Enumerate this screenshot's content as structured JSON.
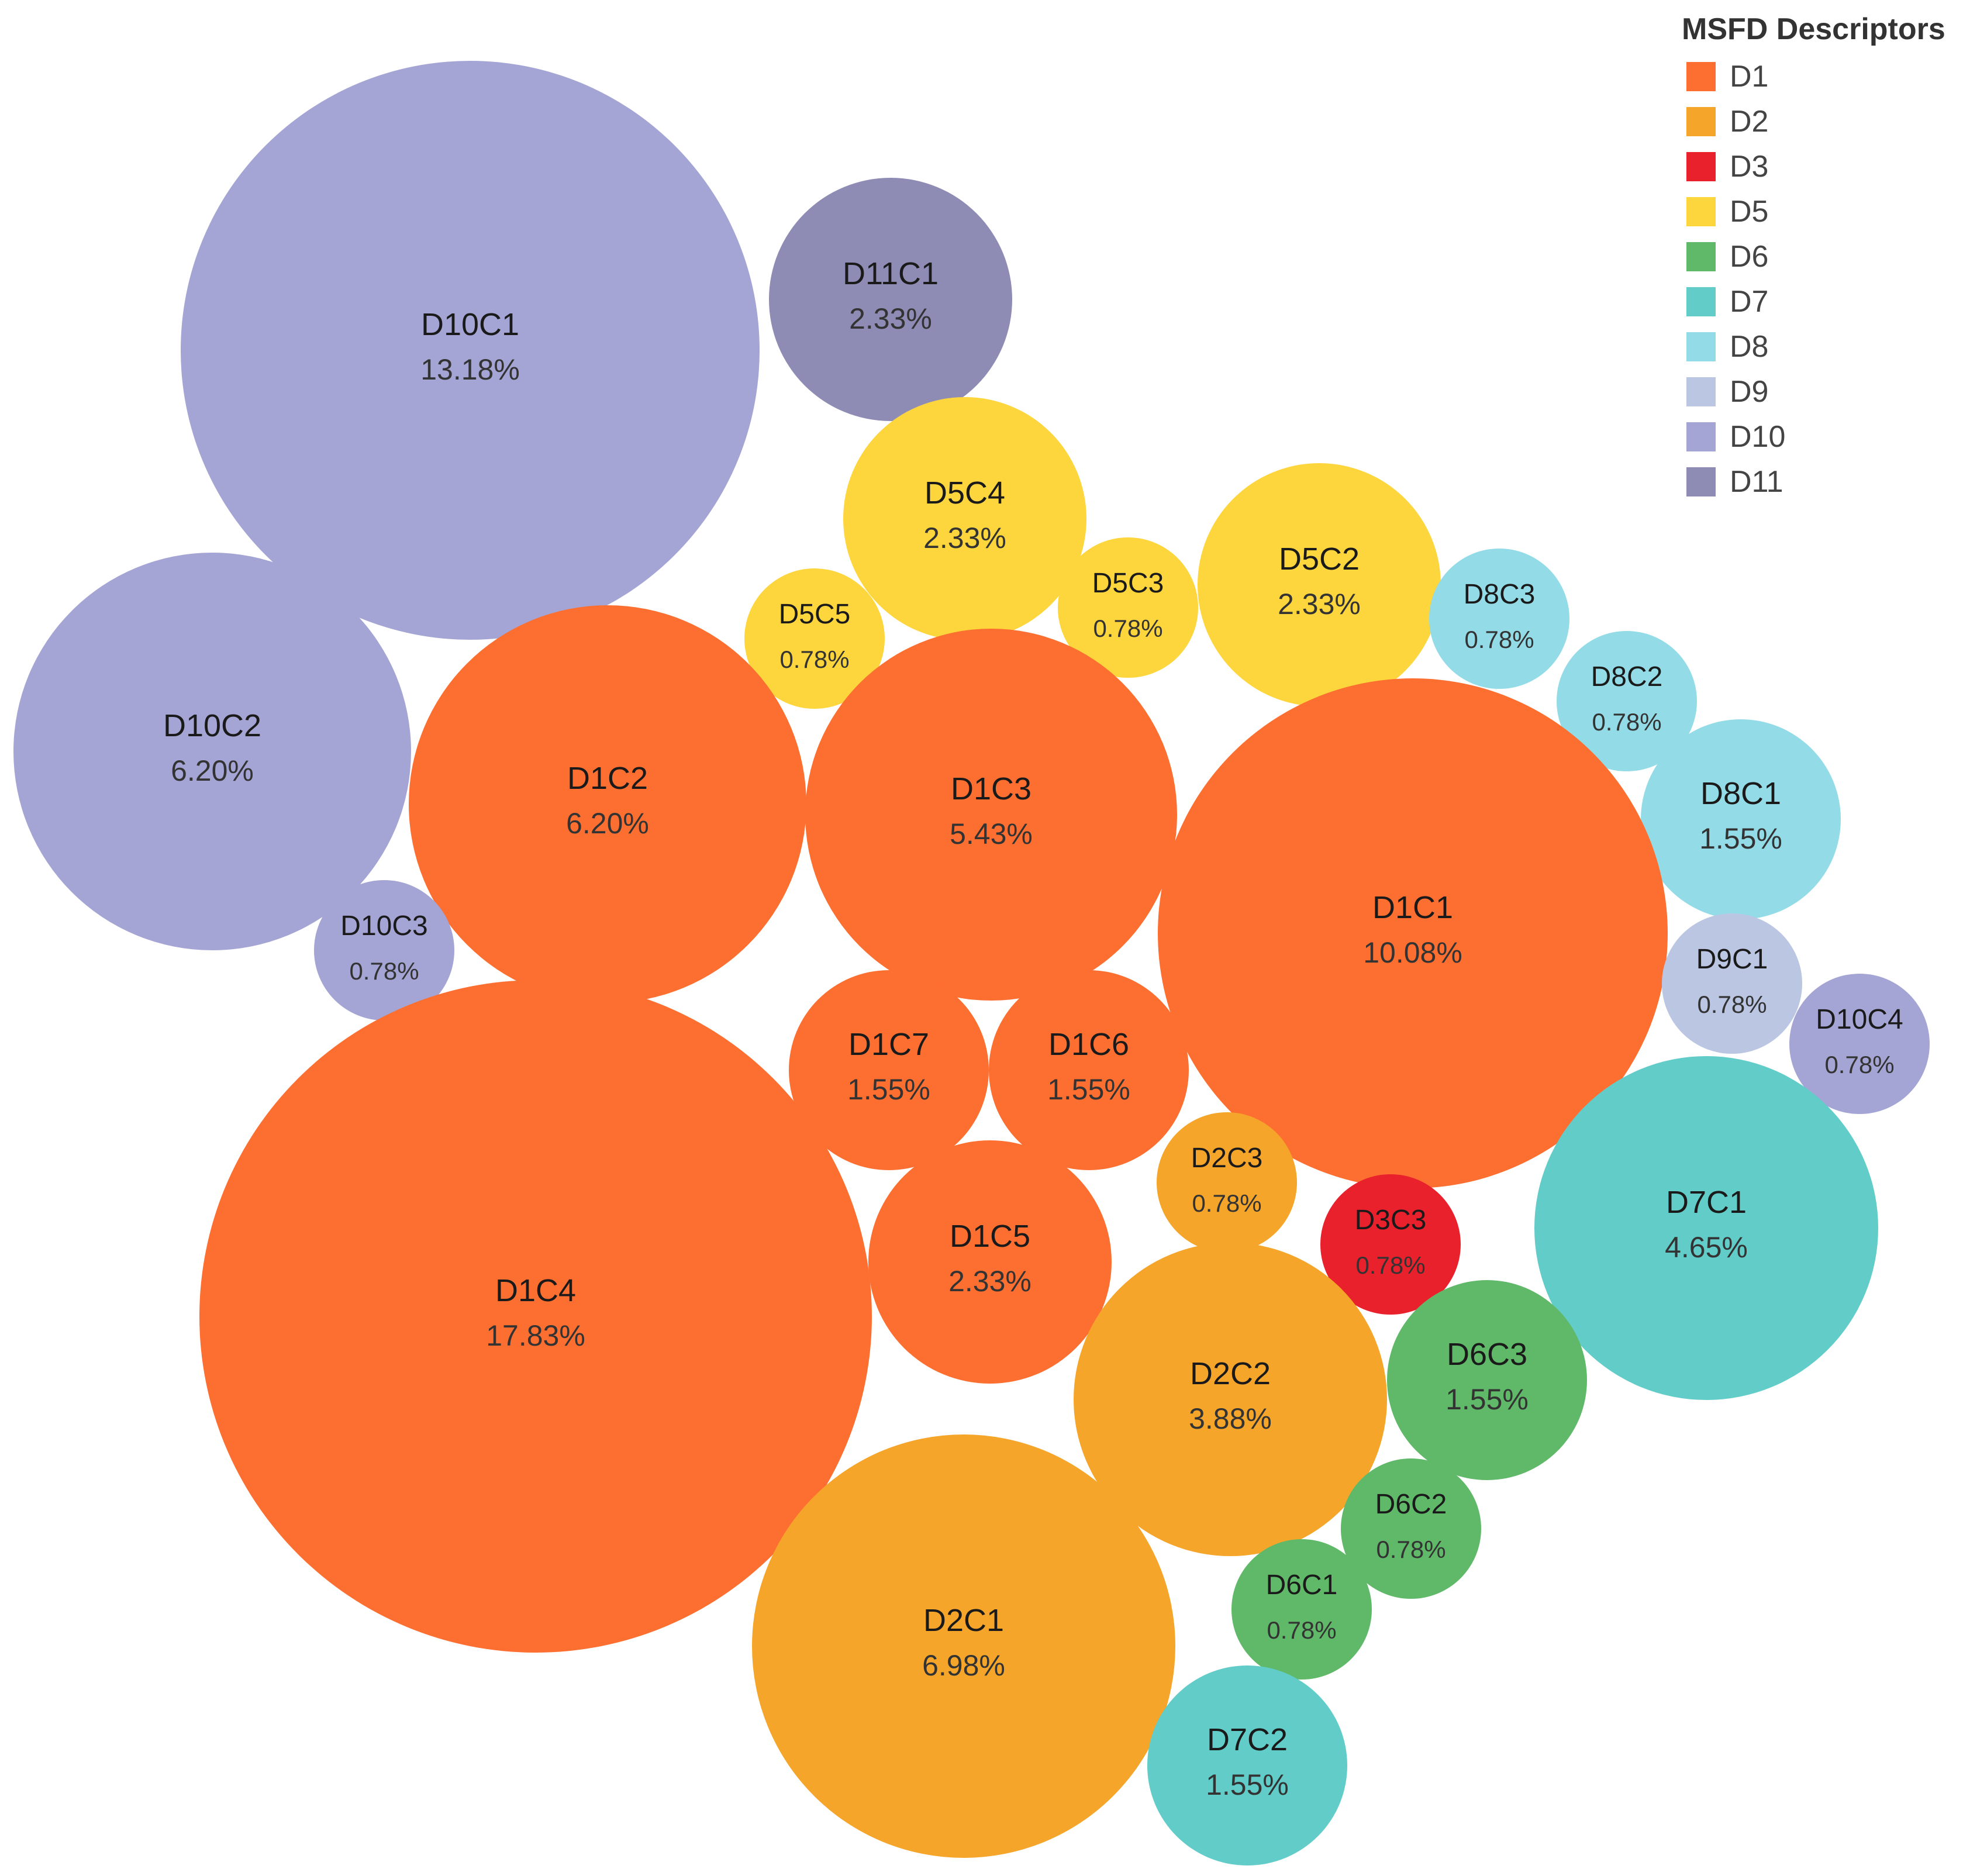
{
  "chart_data": {
    "type": "bubble",
    "legend": {
      "title": "MSFD Descriptors",
      "placement": "top-right",
      "items": [
        {
          "label": "D1",
          "color": "#FD6F31"
        },
        {
          "label": "D2",
          "color": "#F5A62A"
        },
        {
          "label": "D3",
          "color": "#E8212C"
        },
        {
          "label": "D5",
          "color": "#FDD53C"
        },
        {
          "label": "D6",
          "color": "#5FB968"
        },
        {
          "label": "D7",
          "color": "#62CCC8"
        },
        {
          "label": "D8",
          "color": "#93DCE7"
        },
        {
          "label": "D9",
          "color": "#BBC6E3"
        },
        {
          "label": "D10",
          "color": "#A4A5D4"
        },
        {
          "label": "D11",
          "color": "#8E8CB5"
        }
      ]
    },
    "bubbles": [
      {
        "name": "D10C1",
        "value": "13.18%",
        "group": "D10"
      },
      {
        "name": "D11C1",
        "value": "2.33%",
        "group": "D11"
      },
      {
        "name": "D5C4",
        "value": "2.33%",
        "group": "D5"
      },
      {
        "name": "D5C3",
        "value": "0.78%",
        "group": "D5"
      },
      {
        "name": "D5C2",
        "value": "2.33%",
        "group": "D5"
      },
      {
        "name": "D5C5",
        "value": "0.78%",
        "group": "D5"
      },
      {
        "name": "D8C3",
        "value": "0.78%",
        "group": "D8"
      },
      {
        "name": "D8C2",
        "value": "0.78%",
        "group": "D8"
      },
      {
        "name": "D8C1",
        "value": "1.55%",
        "group": "D8"
      },
      {
        "name": "D10C2",
        "value": "6.20%",
        "group": "D10"
      },
      {
        "name": "D1C2",
        "value": "6.20%",
        "group": "D1"
      },
      {
        "name": "D1C3",
        "value": "5.43%",
        "group": "D1"
      },
      {
        "name": "D1C1",
        "value": "10.08%",
        "group": "D1"
      },
      {
        "name": "D10C3",
        "value": "0.78%",
        "group": "D10"
      },
      {
        "name": "D9C1",
        "value": "0.78%",
        "group": "D9"
      },
      {
        "name": "D10C4",
        "value": "0.78%",
        "group": "D10"
      },
      {
        "name": "D1C7",
        "value": "1.55%",
        "group": "D1"
      },
      {
        "name": "D1C6",
        "value": "1.55%",
        "group": "D1"
      },
      {
        "name": "D1C4",
        "value": "17.83%",
        "group": "D1"
      },
      {
        "name": "D2C3",
        "value": "0.78%",
        "group": "D2"
      },
      {
        "name": "D3C3",
        "value": "0.78%",
        "group": "D3"
      },
      {
        "name": "D7C1",
        "value": "4.65%",
        "group": "D7"
      },
      {
        "name": "D1C5",
        "value": "2.33%",
        "group": "D1"
      },
      {
        "name": "D2C2",
        "value": "3.88%",
        "group": "D2"
      },
      {
        "name": "D6C3",
        "value": "1.55%",
        "group": "D6"
      },
      {
        "name": "D6C2",
        "value": "0.78%",
        "group": "D6"
      },
      {
        "name": "D6C1",
        "value": "0.78%",
        "group": "D6"
      },
      {
        "name": "D2C1",
        "value": "6.98%",
        "group": "D2"
      },
      {
        "name": "D7C2",
        "value": "1.55%",
        "group": "D7"
      }
    ]
  }
}
